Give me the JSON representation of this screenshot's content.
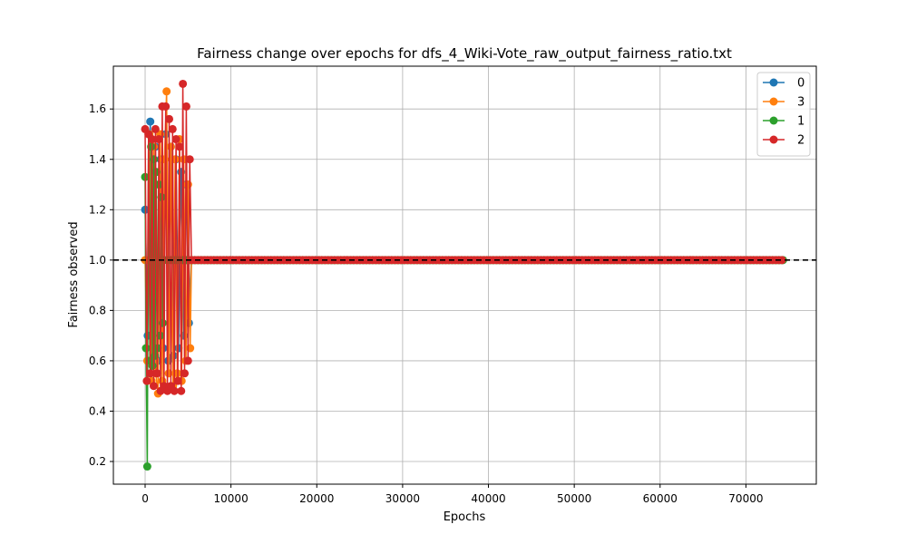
{
  "chart_data": {
    "type": "line",
    "title": "Fairness change over epochs for dfs_4_Wiki-Vote_raw_output_fairness_ratio.txt",
    "xlabel": "Epochs",
    "ylabel": "Fairness observed",
    "xlim": [
      -3700,
      78200
    ],
    "ylim": [
      0.11,
      1.77
    ],
    "xticks": [
      0,
      10000,
      20000,
      30000,
      40000,
      50000,
      60000,
      70000
    ],
    "yticks": [
      0.2,
      0.4,
      0.6,
      0.8,
      1.0,
      1.2,
      1.4,
      1.6
    ],
    "grid": true,
    "legend_position": "top-right",
    "reference_line": {
      "y": 1.0,
      "style": "dashed",
      "color": "#000000"
    },
    "series": [
      {
        "name": "0",
        "color": "#1f77b4",
        "x": [
          0,
          300,
          600,
          900,
          1200,
          1500,
          1800,
          2100,
          2400,
          2700,
          3000,
          3300,
          3600,
          3900,
          4200,
          4500,
          4800,
          5100,
          5400,
          74500
        ],
        "y": [
          1.2,
          0.7,
          1.55,
          0.65,
          1.45,
          0.6,
          1.4,
          0.65,
          1.5,
          0.6,
          1.45,
          0.62,
          1.4,
          0.65,
          1.35,
          0.7,
          1.3,
          0.75,
          1.0,
          1.0
        ]
      },
      {
        "name": "3",
        "color": "#ff7f0e",
        "x": [
          0,
          250,
          500,
          750,
          1000,
          1250,
          1500,
          1750,
          2000,
          2250,
          2500,
          2750,
          3000,
          3250,
          3500,
          3750,
          4000,
          4250,
          4500,
          4750,
          5000,
          5250,
          5400,
          74500
        ],
        "y": [
          1.0,
          0.6,
          1.5,
          0.52,
          1.45,
          0.55,
          0.47,
          1.5,
          0.52,
          1.4,
          1.67,
          0.55,
          1.45,
          0.5,
          1.4,
          0.55,
          1.48,
          0.52,
          1.4,
          0.6,
          1.3,
          0.65,
          1.0,
          1.0
        ]
      },
      {
        "name": "1",
        "color": "#2ca02c",
        "x": [
          0,
          100,
          250,
          400,
          550,
          700,
          850,
          1000,
          1150,
          1300,
          1450,
          1600,
          1750,
          1900,
          2050,
          2200,
          74500
        ],
        "y": [
          1.33,
          0.65,
          0.18,
          1.5,
          0.6,
          1.45,
          0.58,
          1.4,
          0.62,
          1.35,
          0.65,
          1.3,
          0.7,
          1.25,
          0.75,
          1.0,
          1.0
        ]
      },
      {
        "name": "2",
        "color": "#d62728",
        "x": [
          0,
          200,
          400,
          600,
          800,
          1000,
          1200,
          1400,
          1600,
          1800,
          2000,
          2200,
          2400,
          2600,
          2800,
          3000,
          3200,
          3400,
          3600,
          3800,
          4000,
          4200,
          4400,
          4600,
          4800,
          5000,
          5200,
          5400,
          74500
        ],
        "y": [
          1.52,
          0.52,
          1.5,
          0.55,
          1.48,
          0.5,
          1.52,
          0.55,
          1.48,
          0.48,
          1.61,
          0.5,
          1.61,
          0.48,
          1.56,
          0.5,
          1.52,
          0.48,
          1.48,
          0.52,
          1.45,
          0.48,
          1.7,
          0.55,
          1.61,
          0.6,
          1.4,
          1.0,
          1.0
        ]
      }
    ]
  }
}
